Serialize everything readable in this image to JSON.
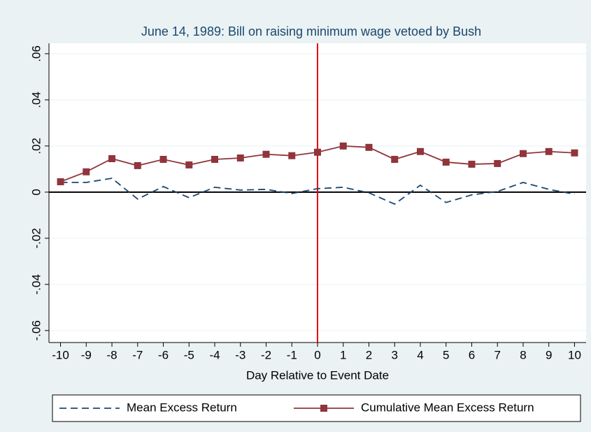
{
  "chart_data": {
    "type": "line",
    "title": "June 14, 1989: Bill on raising minimum wage vetoed by Bush",
    "x_label": "Day Relative to Event Date",
    "x": [
      -10,
      -9,
      -8,
      -7,
      -6,
      -5,
      -4,
      -3,
      -2,
      -1,
      0,
      1,
      2,
      3,
      4,
      5,
      6,
      7,
      8,
      9,
      10
    ],
    "series": [
      {
        "name": "Mean Excess Return",
        "color": "#1a476f",
        "dash": true,
        "marker": false,
        "values": [
          0.0042,
          0.0042,
          0.006,
          -0.003,
          0.0024,
          -0.0024,
          0.0021,
          0.0009,
          0.0012,
          -0.0006,
          0.0015,
          0.0021,
          -0.0003,
          -0.0052,
          0.003,
          -0.0045,
          -0.0012,
          0.0003,
          0.0042,
          0.0012,
          -0.0009
        ]
      },
      {
        "name": "Cumulative Mean Excess Return",
        "color": "#90353b",
        "dash": false,
        "marker": true,
        "values": [
          0.0045,
          0.0088,
          0.0145,
          0.0115,
          0.0142,
          0.0118,
          0.0142,
          0.0148,
          0.0164,
          0.0158,
          0.0173,
          0.02,
          0.0194,
          0.0142,
          0.0176,
          0.013,
          0.0121,
          0.0124,
          0.0167,
          0.0176,
          0.017
        ]
      }
    ],
    "xlim": [
      -10.45,
      10.45
    ],
    "ylim": [
      -0.0652,
      0.0645
    ],
    "xticks": [
      -10,
      -9,
      -8,
      -7,
      -6,
      -5,
      -4,
      -3,
      -2,
      -1,
      0,
      1,
      2,
      3,
      4,
      5,
      6,
      7,
      8,
      9,
      10
    ],
    "yticks": [
      {
        "value": -0.06,
        "label": "-.06"
      },
      {
        "value": -0.04,
        "label": "-.04"
      },
      {
        "value": -0.02,
        "label": "-.02"
      },
      0,
      {
        "value": 0.02,
        "label": ".02"
      },
      {
        "value": 0.04,
        "label": ".04"
      },
      {
        "value": 0.06,
        "label": ".06"
      }
    ],
    "grid": true,
    "xline": 0,
    "xline_color": "#e8000b",
    "yline": 0,
    "yline_color": "#000000",
    "legend": "bottom"
  }
}
